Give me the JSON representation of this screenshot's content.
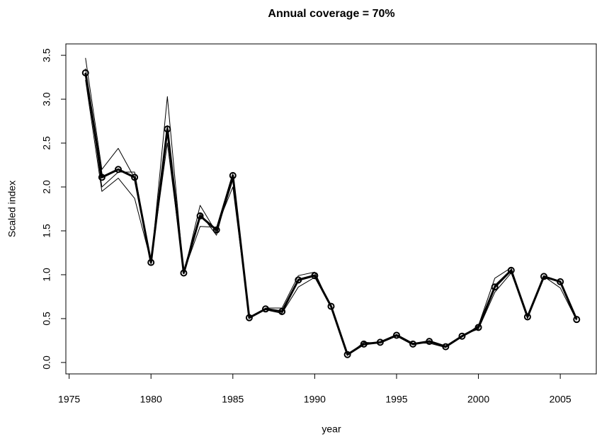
{
  "chart_data": {
    "type": "line",
    "title": "Annual coverage = 70%",
    "xlabel": "year",
    "ylabel": "Scaled index",
    "x": [
      1976,
      1977,
      1978,
      1979,
      1980,
      1981,
      1982,
      1983,
      1984,
      1985,
      1986,
      1987,
      1988,
      1989,
      1990,
      1991,
      1992,
      1993,
      1994,
      1995,
      1996,
      1997,
      1998,
      1999,
      2000,
      2001,
      2002,
      2003,
      2004,
      2005,
      2006
    ],
    "series": [
      {
        "color": "#000000",
        "line_width": 1,
        "markers": false,
        "values": [
          3.47,
          2.2,
          2.44,
          2.1,
          1.12,
          3.03,
          1.01,
          1.79,
          1.48,
          2.08,
          0.5,
          0.62,
          0.62,
          0.99,
          1.03,
          0.63,
          0.08,
          0.23,
          0.22,
          0.3,
          0.2,
          0.25,
          0.19,
          0.29,
          0.42,
          0.96,
          1.08,
          0.5,
          0.98,
          0.85,
          0.48
        ]
      },
      {
        "color": "#000000",
        "line_width": 1,
        "markers": false,
        "values": [
          3.22,
          1.95,
          2.1,
          1.87,
          1.15,
          2.5,
          1.03,
          1.55,
          1.54,
          2.0,
          0.52,
          0.6,
          0.56,
          0.86,
          0.97,
          0.65,
          0.1,
          0.2,
          0.23,
          0.32,
          0.22,
          0.22,
          0.17,
          0.31,
          0.38,
          0.8,
          1.02,
          0.53,
          0.96,
          0.93,
          0.5
        ]
      },
      {
        "color": "#000000",
        "line_width": 1,
        "markers": false,
        "values": [
          3.35,
          2.0,
          2.17,
          2.17,
          1.13,
          2.7,
          1.02,
          1.7,
          1.45,
          2.15,
          0.51,
          0.61,
          0.59,
          0.95,
          1.0,
          0.64,
          0.09,
          0.21,
          0.23,
          0.31,
          0.21,
          0.24,
          0.18,
          0.3,
          0.4,
          0.88,
          1.06,
          0.52,
          0.99,
          0.91,
          0.49
        ]
      },
      {
        "color": "#000000",
        "line_width": 3,
        "markers": true,
        "values": [
          3.3,
          2.11,
          2.2,
          2.11,
          1.14,
          2.66,
          1.02,
          1.67,
          1.51,
          2.13,
          0.51,
          0.61,
          0.58,
          0.94,
          0.99,
          0.64,
          0.09,
          0.21,
          0.23,
          0.31,
          0.21,
          0.24,
          0.18,
          0.3,
          0.4,
          0.86,
          1.05,
          0.52,
          0.98,
          0.92,
          0.49
        ]
      }
    ],
    "xlim": [
      1974.8,
      2007.2
    ],
    "xticks": [
      1975,
      1980,
      1985,
      1990,
      1995,
      2000,
      2005
    ],
    "ylim": [
      -0.13,
      3.63
    ],
    "yticks": [
      {
        "value": 0,
        "label": "0.0"
      },
      0.5,
      {
        "value": 1,
        "label": "1.0"
      },
      1.5,
      {
        "value": 2,
        "label": "2.0"
      },
      2.5,
      {
        "value": 3,
        "label": "3.0"
      },
      3.5
    ],
    "grid": false
  }
}
